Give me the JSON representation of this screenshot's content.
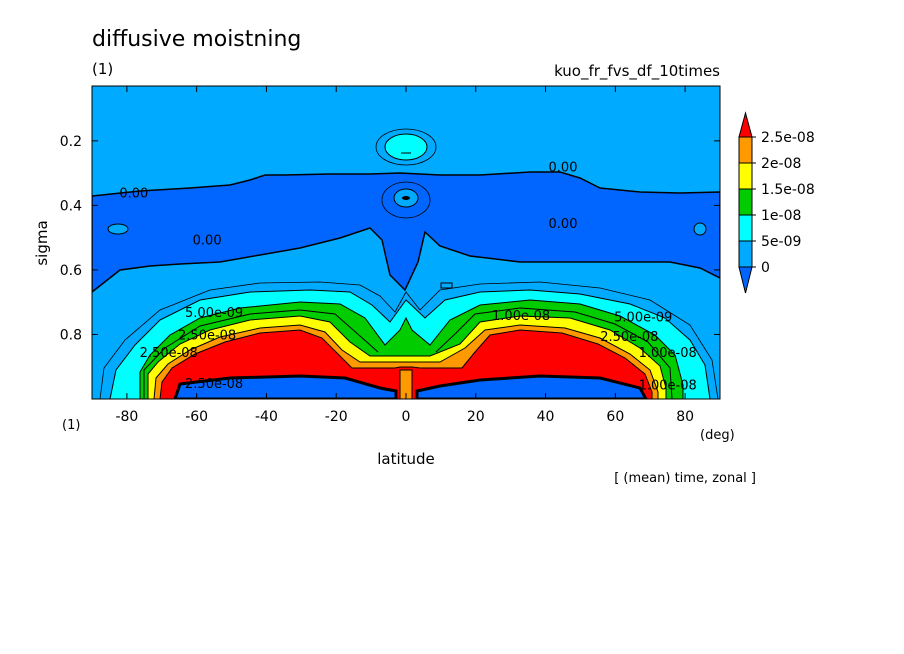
{
  "chart_data": {
    "type": "heatmap",
    "title": "diffusive moistning",
    "subtitle_left": "(1)",
    "subtitle_right": "kuo_fr_fvs_df_10times",
    "xlabel": "latitude",
    "xunit": "(deg)",
    "ylabel": "sigma",
    "corner_label": "(1)",
    "note": "[ (mean) time, zonal ]",
    "xlim": [
      -90,
      90
    ],
    "ylim": [
      1.0,
      0.03
    ],
    "xticks": [
      "-80",
      "-60",
      "-40",
      "-20",
      "0",
      "20",
      "40",
      "60",
      "80"
    ],
    "xtick_values": [
      -80,
      -60,
      -40,
      -20,
      0,
      20,
      40,
      60,
      80
    ],
    "yticks": [
      "0.2",
      "0.4",
      "0.6",
      "0.8"
    ],
    "ytick_values": [
      0.2,
      0.4,
      0.6,
      0.8
    ],
    "colorbar": {
      "levels": [
        "2.5e-08",
        "2e-08",
        "1.5e-08",
        "1e-08",
        "5e-09",
        "0"
      ],
      "colors": [
        "#ff0000",
        "#ff9900",
        "#ffff00",
        "#00cc00",
        "#00ffff",
        "#00aaff",
        "#0066ff"
      ]
    },
    "contour_labels": [
      {
        "text": "0.00",
        "lat": -78,
        "sigma": 0.36
      },
      {
        "text": "0.00",
        "lat": -57,
        "sigma": 0.505
      },
      {
        "text": "0.00",
        "lat": 45,
        "sigma": 0.28
      },
      {
        "text": "0.00",
        "lat": 45,
        "sigma": 0.455
      },
      {
        "text": "5.00e-09",
        "lat": -55,
        "sigma": 0.73
      },
      {
        "text": "2.50e-08",
        "lat": -57,
        "sigma": 0.8
      },
      {
        "text": "2.50e-08",
        "lat": -68,
        "sigma": 0.855
      },
      {
        "text": "1.00e-08",
        "lat": 33,
        "sigma": 0.74
      },
      {
        "text": "5.00e-09",
        "lat": 68,
        "sigma": 0.745
      },
      {
        "text": "2.50e-08",
        "lat": 64,
        "sigma": 0.805
      },
      {
        "text": "1.00e-08",
        "lat": 75,
        "sigma": 0.855
      },
      {
        "text": "2.50e-08",
        "lat": -55,
        "sigma": 0.95
      },
      {
        "text": "1.00e-08",
        "lat": 75,
        "sigma": 0.955
      }
    ]
  }
}
